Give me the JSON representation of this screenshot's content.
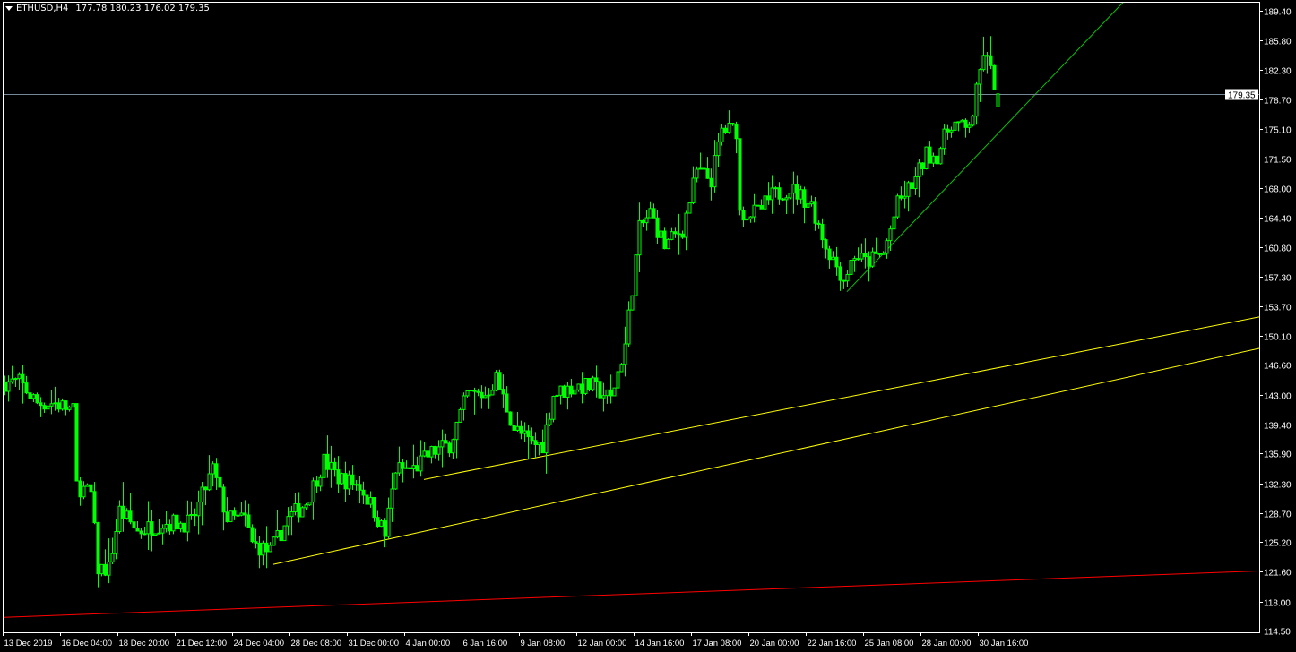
{
  "header": {
    "symbol": "ETHUSD,H4",
    "ohlc": "177.78 180.23 176.02 179.35",
    "menu_icon": "triangle-down-icon"
  },
  "colors": {
    "background": "#000000",
    "axis": "#ffffff",
    "candle": "#00ff00",
    "bid_line": "#778899",
    "support_line": "#ff0000",
    "channel_lines": "#ffff00",
    "trend_line": "#00c800"
  },
  "chart_data": {
    "type": "candlestick",
    "symbol": "ETHUSD",
    "timeframe": "H4",
    "ylim": [
      114.5,
      189.4
    ],
    "y_ticks": [
      "189.40",
      "185.80",
      "182.30",
      "178.70",
      "175.10",
      "171.50",
      "168.00",
      "164.40",
      "160.80",
      "157.30",
      "153.70",
      "150.10",
      "146.60",
      "143.00",
      "139.40",
      "135.90",
      "132.30",
      "128.70",
      "125.20",
      "121.60",
      "118.00",
      "114.50"
    ],
    "x_ticks": [
      "13 Dec 2019",
      "16 Dec 04:00",
      "18 Dec 20:00",
      "21 Dec 12:00",
      "24 Dec 04:00",
      "28 Dec 08:00",
      "31 Dec 00:00",
      "4 Jan 00:00",
      "6 Jan 16:00",
      "9 Jan 08:00",
      "12 Jan 00:00",
      "14 Jan 16:00",
      "17 Jan 08:00",
      "20 Jan 00:00",
      "22 Jan 16:00",
      "25 Jan 08:00",
      "28 Jan 00:00",
      "30 Jan 16:00"
    ],
    "bars_per_tick": 16,
    "close_path": [
      [
        0,
        144.5
      ],
      [
        4,
        144.5
      ],
      [
        9,
        142
      ],
      [
        14,
        142
      ],
      [
        19,
        141
      ],
      [
        20,
        132
      ],
      [
        24,
        131
      ],
      [
        26,
        122
      ],
      [
        29,
        122
      ],
      [
        32,
        129
      ],
      [
        37,
        126.5
      ],
      [
        44,
        127.5
      ],
      [
        52,
        127.5
      ],
      [
        58,
        134
      ],
      [
        62,
        128
      ],
      [
        67,
        128
      ],
      [
        69,
        125
      ],
      [
        74,
        124
      ],
      [
        79,
        128
      ],
      [
        84,
        130
      ],
      [
        89,
        135
      ],
      [
        93,
        133
      ],
      [
        99,
        132
      ],
      [
        103,
        129
      ],
      [
        106,
        126
      ],
      [
        109,
        134
      ],
      [
        114,
        134
      ],
      [
        119,
        136
      ],
      [
        124,
        137
      ],
      [
        129,
        143
      ],
      [
        134,
        143
      ],
      [
        137,
        145
      ],
      [
        142,
        139
      ],
      [
        147,
        137
      ],
      [
        150,
        137
      ],
      [
        153,
        143
      ],
      [
        159,
        144
      ],
      [
        164,
        144
      ],
      [
        169,
        142.5
      ],
      [
        173,
        149
      ],
      [
        175,
        156
      ],
      [
        177,
        163
      ],
      [
        180,
        165
      ],
      [
        184,
        161
      ],
      [
        189,
        163
      ],
      [
        193,
        170
      ],
      [
        197,
        169
      ],
      [
        200,
        175
      ],
      [
        204,
        175
      ],
      [
        205,
        165
      ],
      [
        210,
        165
      ],
      [
        214,
        167
      ],
      [
        219,
        168
      ],
      [
        225,
        166
      ],
      [
        229,
        161
      ],
      [
        234,
        157
      ],
      [
        237,
        160
      ],
      [
        240,
        159
      ],
      [
        245,
        160
      ],
      [
        249,
        166
      ],
      [
        254,
        169
      ],
      [
        257,
        172
      ],
      [
        260,
        172
      ],
      [
        264,
        176
      ],
      [
        268,
        175
      ],
      [
        270,
        177
      ],
      [
        273,
        184.5
      ],
      [
        275,
        182
      ],
      [
        277,
        179.35
      ]
    ],
    "last_bar": {
      "open": 177.78,
      "high": 180.23,
      "low": 176.02,
      "close": 179.35
    },
    "bid_price": "179.35",
    "trendlines": [
      {
        "color": "support_line",
        "from": [
          0,
          116.1
        ],
        "to": [
          350,
          121.7
        ]
      },
      {
        "color": "channel_lines",
        "from": [
          117,
          132.75
        ],
        "to": [
          350,
          152.4
        ]
      },
      {
        "color": "channel_lines",
        "from": [
          75,
          122.5
        ],
        "to": [
          350,
          148.6
        ]
      },
      {
        "color": "trend_line",
        "from": [
          235,
          155.45
        ],
        "to": [
          312,
          190.4
        ]
      }
    ]
  }
}
